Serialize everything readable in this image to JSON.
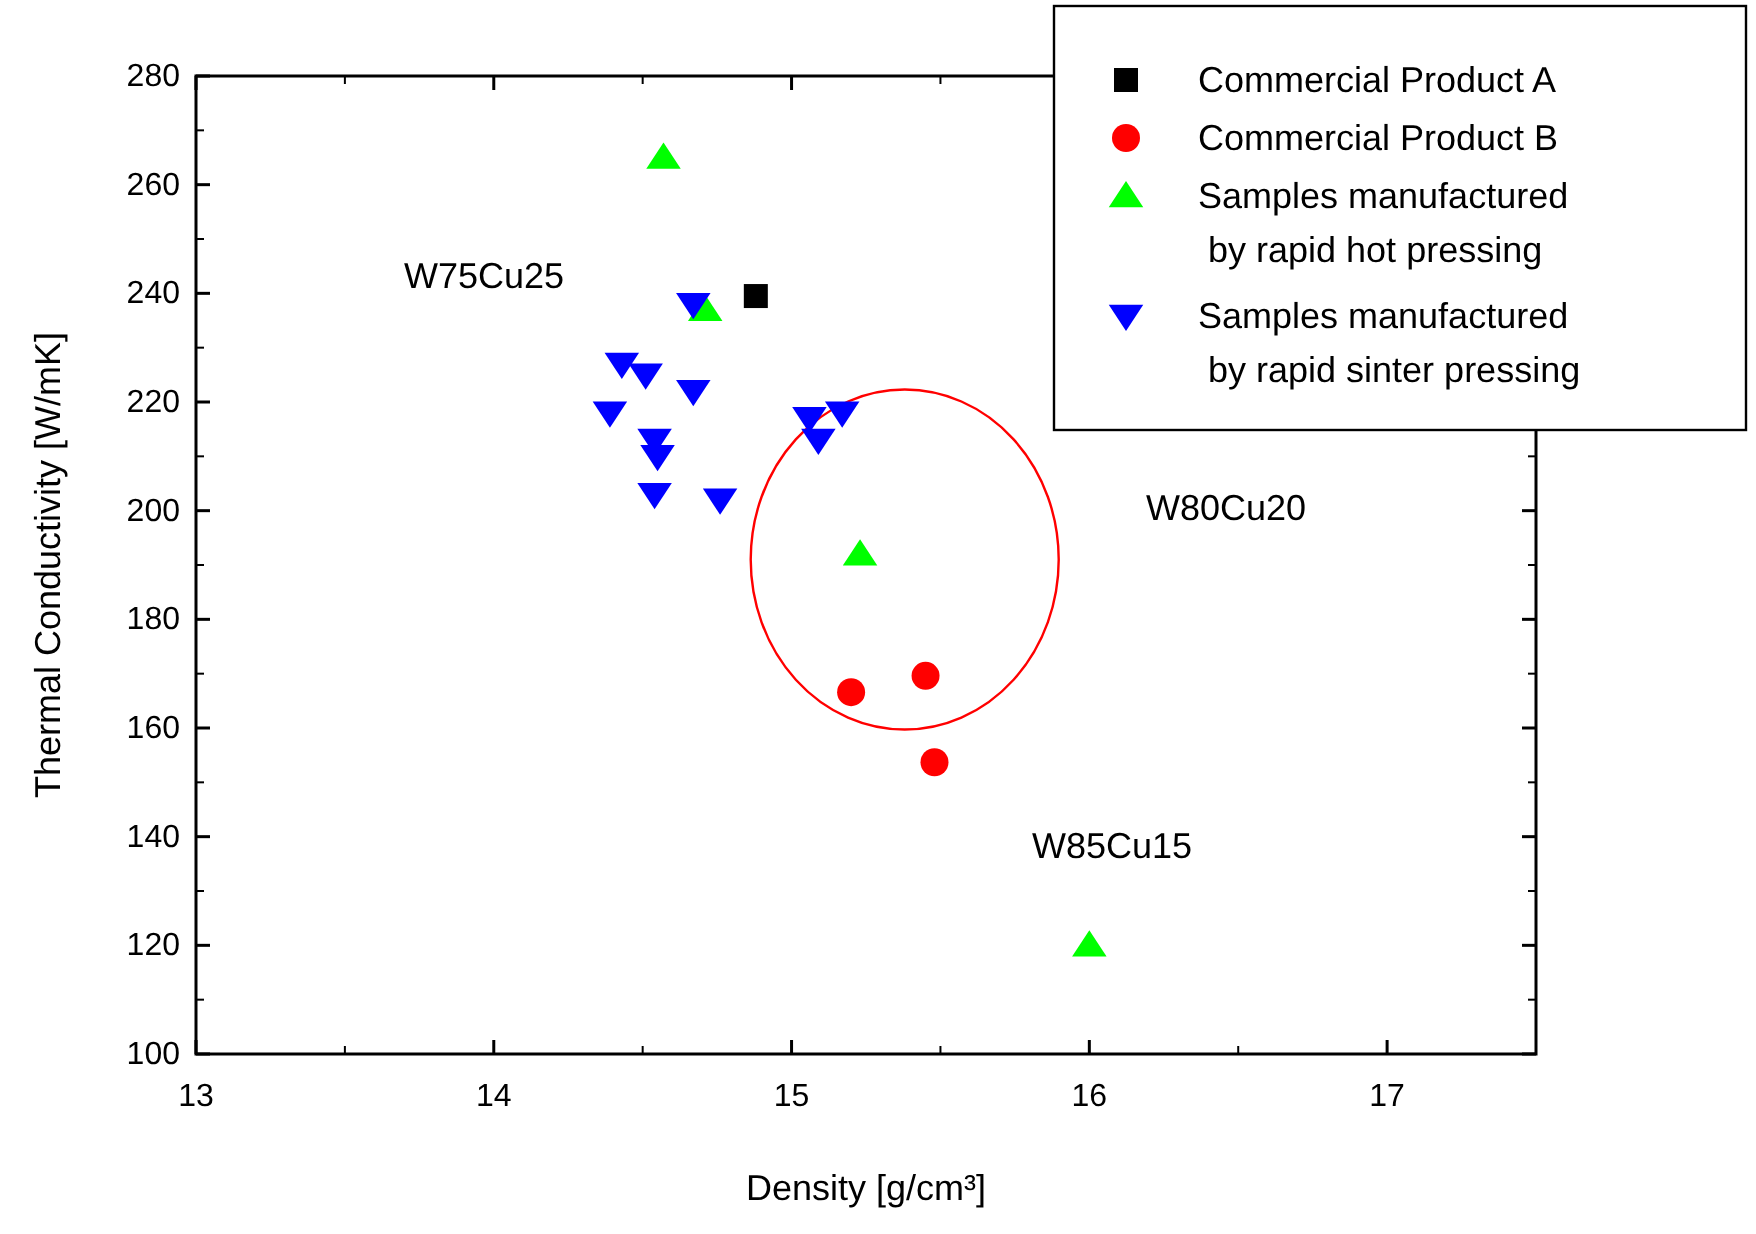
{
  "chart_data": {
    "type": "scatter",
    "xlabel": "Density [g/cm³]",
    "ylabel": "Thermal Conductivity [W/mK]",
    "xlim": [
      13,
      17.5
    ],
    "xticks": [
      13,
      14,
      15,
      16,
      17
    ],
    "ylim": [
      100,
      280
    ],
    "yticks": [
      100,
      120,
      140,
      160,
      180,
      200,
      220,
      240,
      260,
      280
    ],
    "grid": false,
    "legend": "top right",
    "series": [
      {
        "name": "Commercial Product A",
        "color": "#000000",
        "marker": "square",
        "x": [
          14.88
        ],
        "values": [
          239.5
        ]
      },
      {
        "name": "Commercial Product B",
        "color": "#ff0000",
        "marker": "circle",
        "x": [
          15.2,
          15.45,
          15.48
        ],
        "values": [
          166.6,
          169.6,
          153.7
        ]
      },
      {
        "name": "Samples manufactured\n by rapid hot pressing",
        "color": "#00ff00",
        "marker": "triangle",
        "x": [
          14.57,
          14.71,
          15.23,
          16.0
        ],
        "values": [
          265,
          237,
          192,
          120
        ]
      },
      {
        "name": "Samples manufactured\n by rapid sinter pressing",
        "color": "#0000ff",
        "marker": "triangle-down",
        "x": [
          14.67,
          14.43,
          14.51,
          14.67,
          14.39,
          14.54,
          14.55,
          14.54,
          14.76,
          15.06,
          15.17,
          15.09
        ],
        "values": [
          238,
          227,
          225,
          222,
          218,
          213,
          210,
          203,
          202,
          217,
          218,
          213
        ]
      }
    ],
    "annotations": [
      "W75Cu25",
      "W80Cu20",
      "W85Cu15"
    ]
  }
}
